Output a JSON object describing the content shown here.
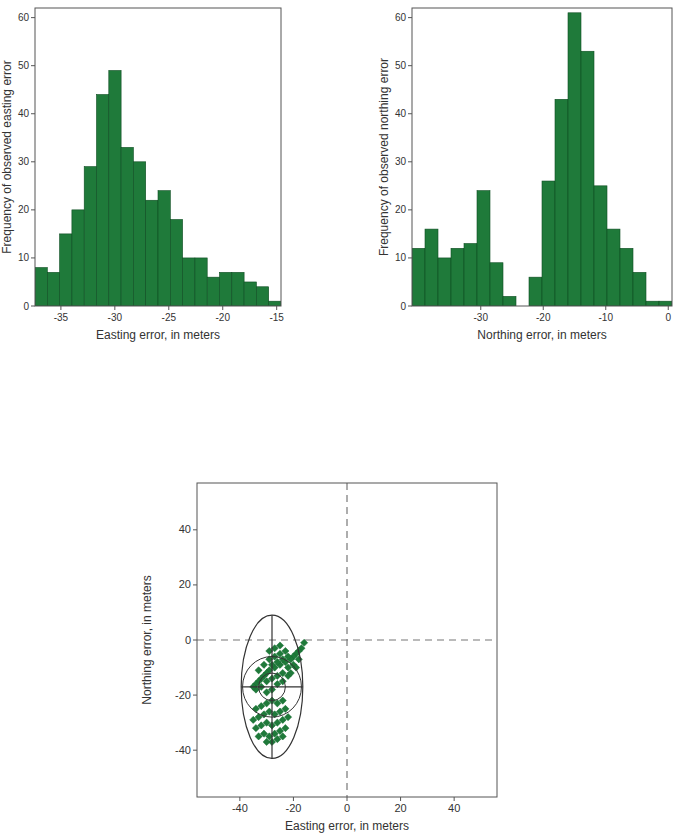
{
  "chart_data": [
    {
      "type": "histogram",
      "x_label": "Easting error, in meters",
      "y_label": "Frequency of observed easting error",
      "bins": [
        -37.4,
        -36.26,
        -35.12,
        -33.98,
        -32.84,
        -31.7,
        -30.56,
        -29.42,
        -28.28,
        -27.14,
        -26,
        -24.86,
        -23.72,
        -22.58,
        -21.44,
        -20.3,
        -19.16,
        -18.02,
        -16.88,
        -15.74,
        -14.6
      ],
      "values": [
        8,
        7,
        15,
        20,
        29,
        44,
        49,
        33,
        30,
        22,
        24,
        18,
        10,
        10,
        6,
        7,
        7,
        5,
        4,
        1
      ],
      "color": "#1f7a3a",
      "xlim": [
        -37.4,
        -14.6
      ],
      "xticks": [
        -35,
        -30,
        -25,
        -20,
        -15
      ],
      "ylim": [
        0,
        62
      ],
      "yticks": [
        0,
        10,
        20,
        30,
        40,
        50,
        60
      ]
    },
    {
      "type": "histogram",
      "x_label": "Northing error, in meters",
      "y_label": "Frequency of observed northing error",
      "bins": [
        -41,
        -38.92,
        -36.84,
        -34.76,
        -32.68,
        -30.6,
        -28.52,
        -26.44,
        -24.36,
        -22.28,
        -20.2,
        -18.12,
        -16.04,
        -13.96,
        -11.88,
        -9.8,
        -7.72,
        -5.64,
        -3.56,
        -1.48,
        0.6
      ],
      "values": [
        12,
        16,
        10,
        12,
        13,
        24,
        9,
        2,
        0,
        6,
        26,
        43,
        61,
        53,
        25,
        16,
        12,
        7,
        1,
        1
      ],
      "color": "#1f7a3a",
      "xlim": [
        -41,
        0.6
      ],
      "xticks": [
        -30,
        -20,
        -10,
        0
      ],
      "ylim": [
        0,
        62
      ],
      "yticks": [
        0,
        10,
        20,
        30,
        40,
        50,
        60
      ]
    },
    {
      "type": "scatter",
      "x_label": "Easting error, in meters",
      "y_label": "Northing error, in meters",
      "x": [
        -16,
        -17,
        -18,
        -19,
        -20,
        -21,
        -22,
        -23,
        -24,
        -25,
        -26,
        -27,
        -28,
        -29,
        -30,
        -31,
        -32,
        -33,
        -34,
        -22,
        -24,
        -26,
        -28,
        -30,
        -32,
        -20,
        -18,
        -23,
        -25,
        -27,
        -29,
        -31,
        -33,
        -26,
        -28,
        -24,
        -22,
        -30,
        -34,
        -35,
        -29,
        -27,
        -25,
        -21,
        -19,
        -24,
        -26,
        -28,
        -30,
        -32,
        -34,
        -23,
        -25,
        -27,
        -29,
        -31,
        -33,
        -35,
        -22,
        -24,
        -26,
        -28,
        -30,
        -32,
        -34,
        -23,
        -25,
        -27,
        -29,
        -31,
        -33,
        -26,
        -28,
        -30,
        -24
      ],
      "values": [
        -1,
        -3,
        -4,
        -5,
        -6,
        -7,
        -6,
        -8,
        -7,
        -9,
        -8,
        -10,
        -9,
        -11,
        -12,
        -13,
        -14,
        -15,
        -16,
        -10,
        -12,
        -13,
        -14,
        -15,
        -17,
        -9,
        -7,
        -4,
        -5,
        -6,
        -7,
        -9,
        -11,
        -16,
        -18,
        -15,
        -13,
        -19,
        -18,
        -17,
        -4,
        -3,
        -2,
        -12,
        -10,
        -22,
        -23,
        -22,
        -23,
        -24,
        -25,
        -25,
        -26,
        -27,
        -26,
        -27,
        -28,
        -29,
        -28,
        -29,
        -30,
        -31,
        -30,
        -31,
        -32,
        -32,
        -33,
        -34,
        -35,
        -34,
        -35,
        -36,
        -37,
        -37,
        -35
      ],
      "color": "#1f7a3a",
      "marker": "diamond",
      "ellipse_center": [
        -28,
        -17
      ],
      "ellipse_radii": [
        11.5,
        26
      ],
      "circle_radii": [
        5,
        11
      ],
      "reference_x": 0,
      "reference_y": 0,
      "xlim": [
        -56,
        56
      ],
      "xticks": [
        -40,
        -20,
        0,
        20,
        40
      ],
      "ylim": [
        -57,
        57
      ],
      "yticks": [
        -40,
        -20,
        0,
        20,
        40
      ]
    }
  ]
}
